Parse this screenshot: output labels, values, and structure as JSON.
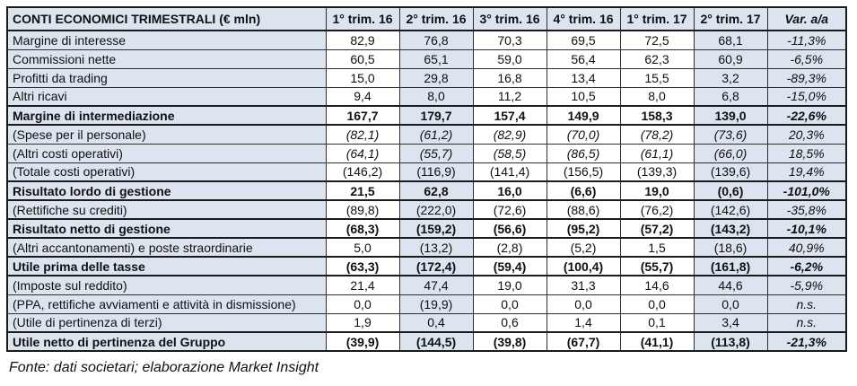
{
  "table": {
    "title": "CONTI ECONOMICI TRIMESTRALI (€ mln)",
    "columns": [
      "1° trim. 16",
      "2° trim. 16",
      "3° trim. 16",
      "4° trim. 16",
      "1° trim. 17",
      "2° trim. 17"
    ],
    "var_column": "Var. a/a",
    "highlight_columns": [
      1,
      5
    ],
    "rows": [
      {
        "label": "Margine di interesse",
        "values": [
          "82,9",
          "76,8",
          "70,3",
          "69,5",
          "72,5",
          "68,1"
        ],
        "var": "-11,3%"
      },
      {
        "label": "Commissioni nette",
        "values": [
          "60,5",
          "65,1",
          "59,0",
          "56,4",
          "62,3",
          "60,9"
        ],
        "var": "-6,5%"
      },
      {
        "label": "Profitti da trading",
        "values": [
          "15,0",
          "29,8",
          "16,8",
          "13,4",
          "15,5",
          "3,2"
        ],
        "var": "-89,3%"
      },
      {
        "label": "Altri ricavi",
        "values": [
          "9,4",
          "8,0",
          "11,2",
          "10,5",
          "8,0",
          "6,8"
        ],
        "var": "-15,0%"
      },
      {
        "label": "Margine di intermediazione",
        "values": [
          "167,7",
          "179,7",
          "157,4",
          "149,9",
          "158,3",
          "139,0"
        ],
        "var": "-22,6%",
        "bold": true
      },
      {
        "label": "(Spese per il personale)",
        "values": [
          "(82,1)",
          "(61,2)",
          "(82,9)",
          "(70,0)",
          "(78,2)",
          "(73,6)"
        ],
        "var": "20,3%",
        "italic_values": true
      },
      {
        "label": "(Altri costi operativi)",
        "values": [
          "(64,1)",
          "(55,7)",
          "(58,5)",
          "(86,5)",
          "(61,1)",
          "(66,0)"
        ],
        "var": "18,5%",
        "italic_values": true
      },
      {
        "label": "(Totale costi operativi)",
        "values": [
          "(146,2)",
          "(116,9)",
          "(141,4)",
          "(156,5)",
          "(139,3)",
          "(139,6)"
        ],
        "var": "19,4%"
      },
      {
        "label": "Risultato lordo di gestione",
        "values": [
          "21,5",
          "62,8",
          "16,0",
          "(6,6)",
          "19,0",
          "(0,6)"
        ],
        "var": "-101,0%",
        "bold": true
      },
      {
        "label": "(Rettifiche su crediti)",
        "values": [
          "(89,8)",
          "(222,0)",
          "(72,6)",
          "(88,6)",
          "(76,2)",
          "(142,6)"
        ],
        "var": "-35,8%"
      },
      {
        "label": "Risultato netto di gestione",
        "values": [
          "(68,3)",
          "(159,2)",
          "(56,6)",
          "(95,2)",
          "(57,2)",
          "(143,2)"
        ],
        "var": "-10,1%",
        "bold": true
      },
      {
        "label": "(Altri accantonamenti) e poste straordinarie",
        "values": [
          "5,0",
          "(13,2)",
          "(2,8)",
          "(5,2)",
          "1,5",
          "(18,6)"
        ],
        "var": "40,9%"
      },
      {
        "label": "Utile prima delle tasse",
        "values": [
          "(63,3)",
          "(172,4)",
          "(59,4)",
          "(100,4)",
          "(55,7)",
          "(161,8)"
        ],
        "var": "-6,2%",
        "bold": true,
        "var_bold": false
      },
      {
        "label": "(Imposte sul reddito)",
        "values": [
          "21,4",
          "47,4",
          "19,0",
          "31,3",
          "14,6",
          "44,6"
        ],
        "var": "-5,9%"
      },
      {
        "label": "(PPA, rettifiche avviamenti e attività in dismissione)",
        "values": [
          "0,0",
          "(19,9)",
          "0,0",
          "0,0",
          "0,0",
          "0,0"
        ],
        "var": "n.s."
      },
      {
        "label": "(Utile di pertinenza di terzi)",
        "values": [
          "1,9",
          "0,4",
          "0,6",
          "1,4",
          "0,1",
          "3,4"
        ],
        "var": "n.s."
      },
      {
        "label": "Utile netto di pertinenza del Gruppo",
        "values": [
          "(39,9)",
          "(144,5)",
          "(39,8)",
          "(67,7)",
          "(41,1)",
          "(113,8)"
        ],
        "var": "-21,3%",
        "bold": true
      }
    ]
  },
  "footer": {
    "source": "Fonte: dati societari; elaborazione Market Insight"
  },
  "colors": {
    "cell_highlight_blue": "#dce4f0",
    "cell_white": "#ffffff",
    "border_dark": "#1a1a1a",
    "text": "#101010"
  }
}
